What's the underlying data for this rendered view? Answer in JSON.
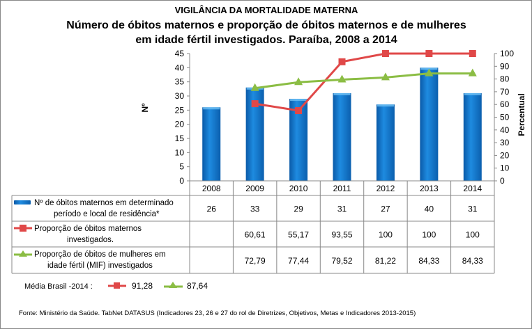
{
  "chart_data": {
    "type": "bar",
    "title": "VIGILÂNCIA DA MORTALIDADE MATERNA",
    "subtitle_lines": [
      "Número de óbitos maternos e proporção de óbitos maternos e de mulheres",
      "em idade fértil investigados. Paraíba, 2008 a 2014"
    ],
    "ylabel": "Nº",
    "y2label": "Percentual",
    "ylim": [
      0,
      45
    ],
    "y2lim": [
      0,
      100
    ],
    "yticks": [
      0,
      5,
      10,
      15,
      20,
      25,
      30,
      35,
      40,
      45
    ],
    "y2ticks": [
      0,
      10,
      20,
      30,
      40,
      50,
      60,
      70,
      80,
      90,
      100
    ],
    "categories": [
      "2008",
      "2009",
      "2010",
      "2011",
      "2012",
      "2013",
      "2014"
    ],
    "legend_placement": "data-table",
    "series": [
      {
        "name": "Nº  de óbitos maternos em determinado período e local de residência*",
        "type": "bar",
        "axis": "left",
        "color": "#1f7fd0",
        "values": [
          26,
          33,
          29,
          31,
          27,
          40,
          31
        ],
        "labels": [
          "26",
          "33",
          "29",
          "31",
          "27",
          "40",
          "31"
        ]
      },
      {
        "name": "Proporção de óbitos maternos investigados.",
        "type": "line",
        "marker": "square",
        "axis": "right",
        "color": "#e04848",
        "values": [
          null,
          60.61,
          55.17,
          93.55,
          100,
          100,
          100
        ],
        "labels": [
          "",
          "60,61",
          "55,17",
          "93,55",
          "100",
          "100",
          "100"
        ]
      },
      {
        "name": "Proporção de óbitos de mulheres em idade fértil (MIF) investigados",
        "type": "line",
        "marker": "triangle",
        "axis": "right",
        "color": "#8bbd44",
        "values": [
          null,
          72.79,
          77.44,
          79.52,
          81.22,
          84.33,
          84.33
        ],
        "labels": [
          "",
          "72,79",
          "77,44",
          "79,52",
          "81,22",
          "84,33",
          "84,33"
        ]
      }
    ],
    "legend_lines": [
      [
        "Nº  de óbitos maternos em determinado",
        "período e local de residência*"
      ],
      [
        "Proporção de óbitos maternos",
        "investigados."
      ],
      [
        "Proporção de óbitos de mulheres em",
        "idade fértil (MIF) investigados"
      ]
    ],
    "brasil": {
      "label": "Média Brasil -2014 :",
      "maternos": "91,28",
      "mif": "87,64"
    },
    "source": "Fonte: Ministério da Saúde. TabNet DATASUS (Indicadores 23, 26 e 27  do rol de Diretrizes, Objetivos, Metas e Indicadores 2013-2015)"
  }
}
